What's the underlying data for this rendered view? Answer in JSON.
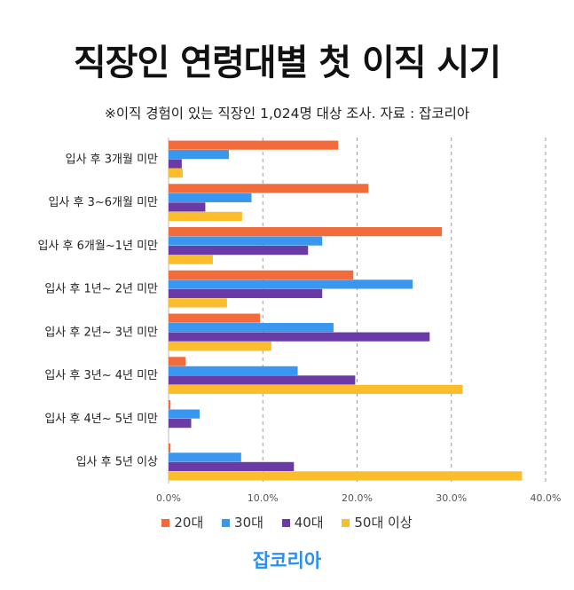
{
  "title": "직장인 연령대별 첫 이직 시기",
  "subtitle": "※이직 경험이 있는 직장인 1,024명 대상 조사. 자료 : 잡코리아",
  "logo_text": "잡코리아",
  "chart_data": {
    "type": "bar",
    "orientation": "horizontal",
    "categories": [
      "입사 후 3개월 미만",
      "입사 후 3~6개월 미만",
      "입사 후 6개월~1년 미만",
      "입사 후 1년~ 2년 미만",
      "입사 후 2년~ 3년 미만",
      "입사 후 3년~ 4년 미만",
      "입사 후 4년~ 5년 미만",
      "입사 후 5년 이상"
    ],
    "series": [
      {
        "name": "20대",
        "color": "#f26b3a",
        "values": [
          18.0,
          21.2,
          29.0,
          19.6,
          9.7,
          1.8,
          0.2,
          0.2
        ]
      },
      {
        "name": "30대",
        "color": "#3a97ef",
        "values": [
          6.4,
          8.8,
          16.3,
          25.9,
          17.5,
          13.7,
          3.3,
          7.7
        ]
      },
      {
        "name": "40대",
        "color": "#6a3aa6",
        "values": [
          1.4,
          3.9,
          14.8,
          16.3,
          27.7,
          19.8,
          2.4,
          13.3
        ]
      },
      {
        "name": "50대 이상",
        "color": "#fbbd2c",
        "values": [
          1.5,
          7.8,
          4.7,
          6.2,
          10.9,
          31.2,
          0.0,
          37.5
        ]
      }
    ],
    "xlim": [
      0,
      40
    ],
    "xticks": [
      "0.0%",
      "10.0%",
      "20.0%",
      "30.0%",
      "40.0%"
    ],
    "grid": "vertical dashed",
    "legend": "bottom"
  }
}
